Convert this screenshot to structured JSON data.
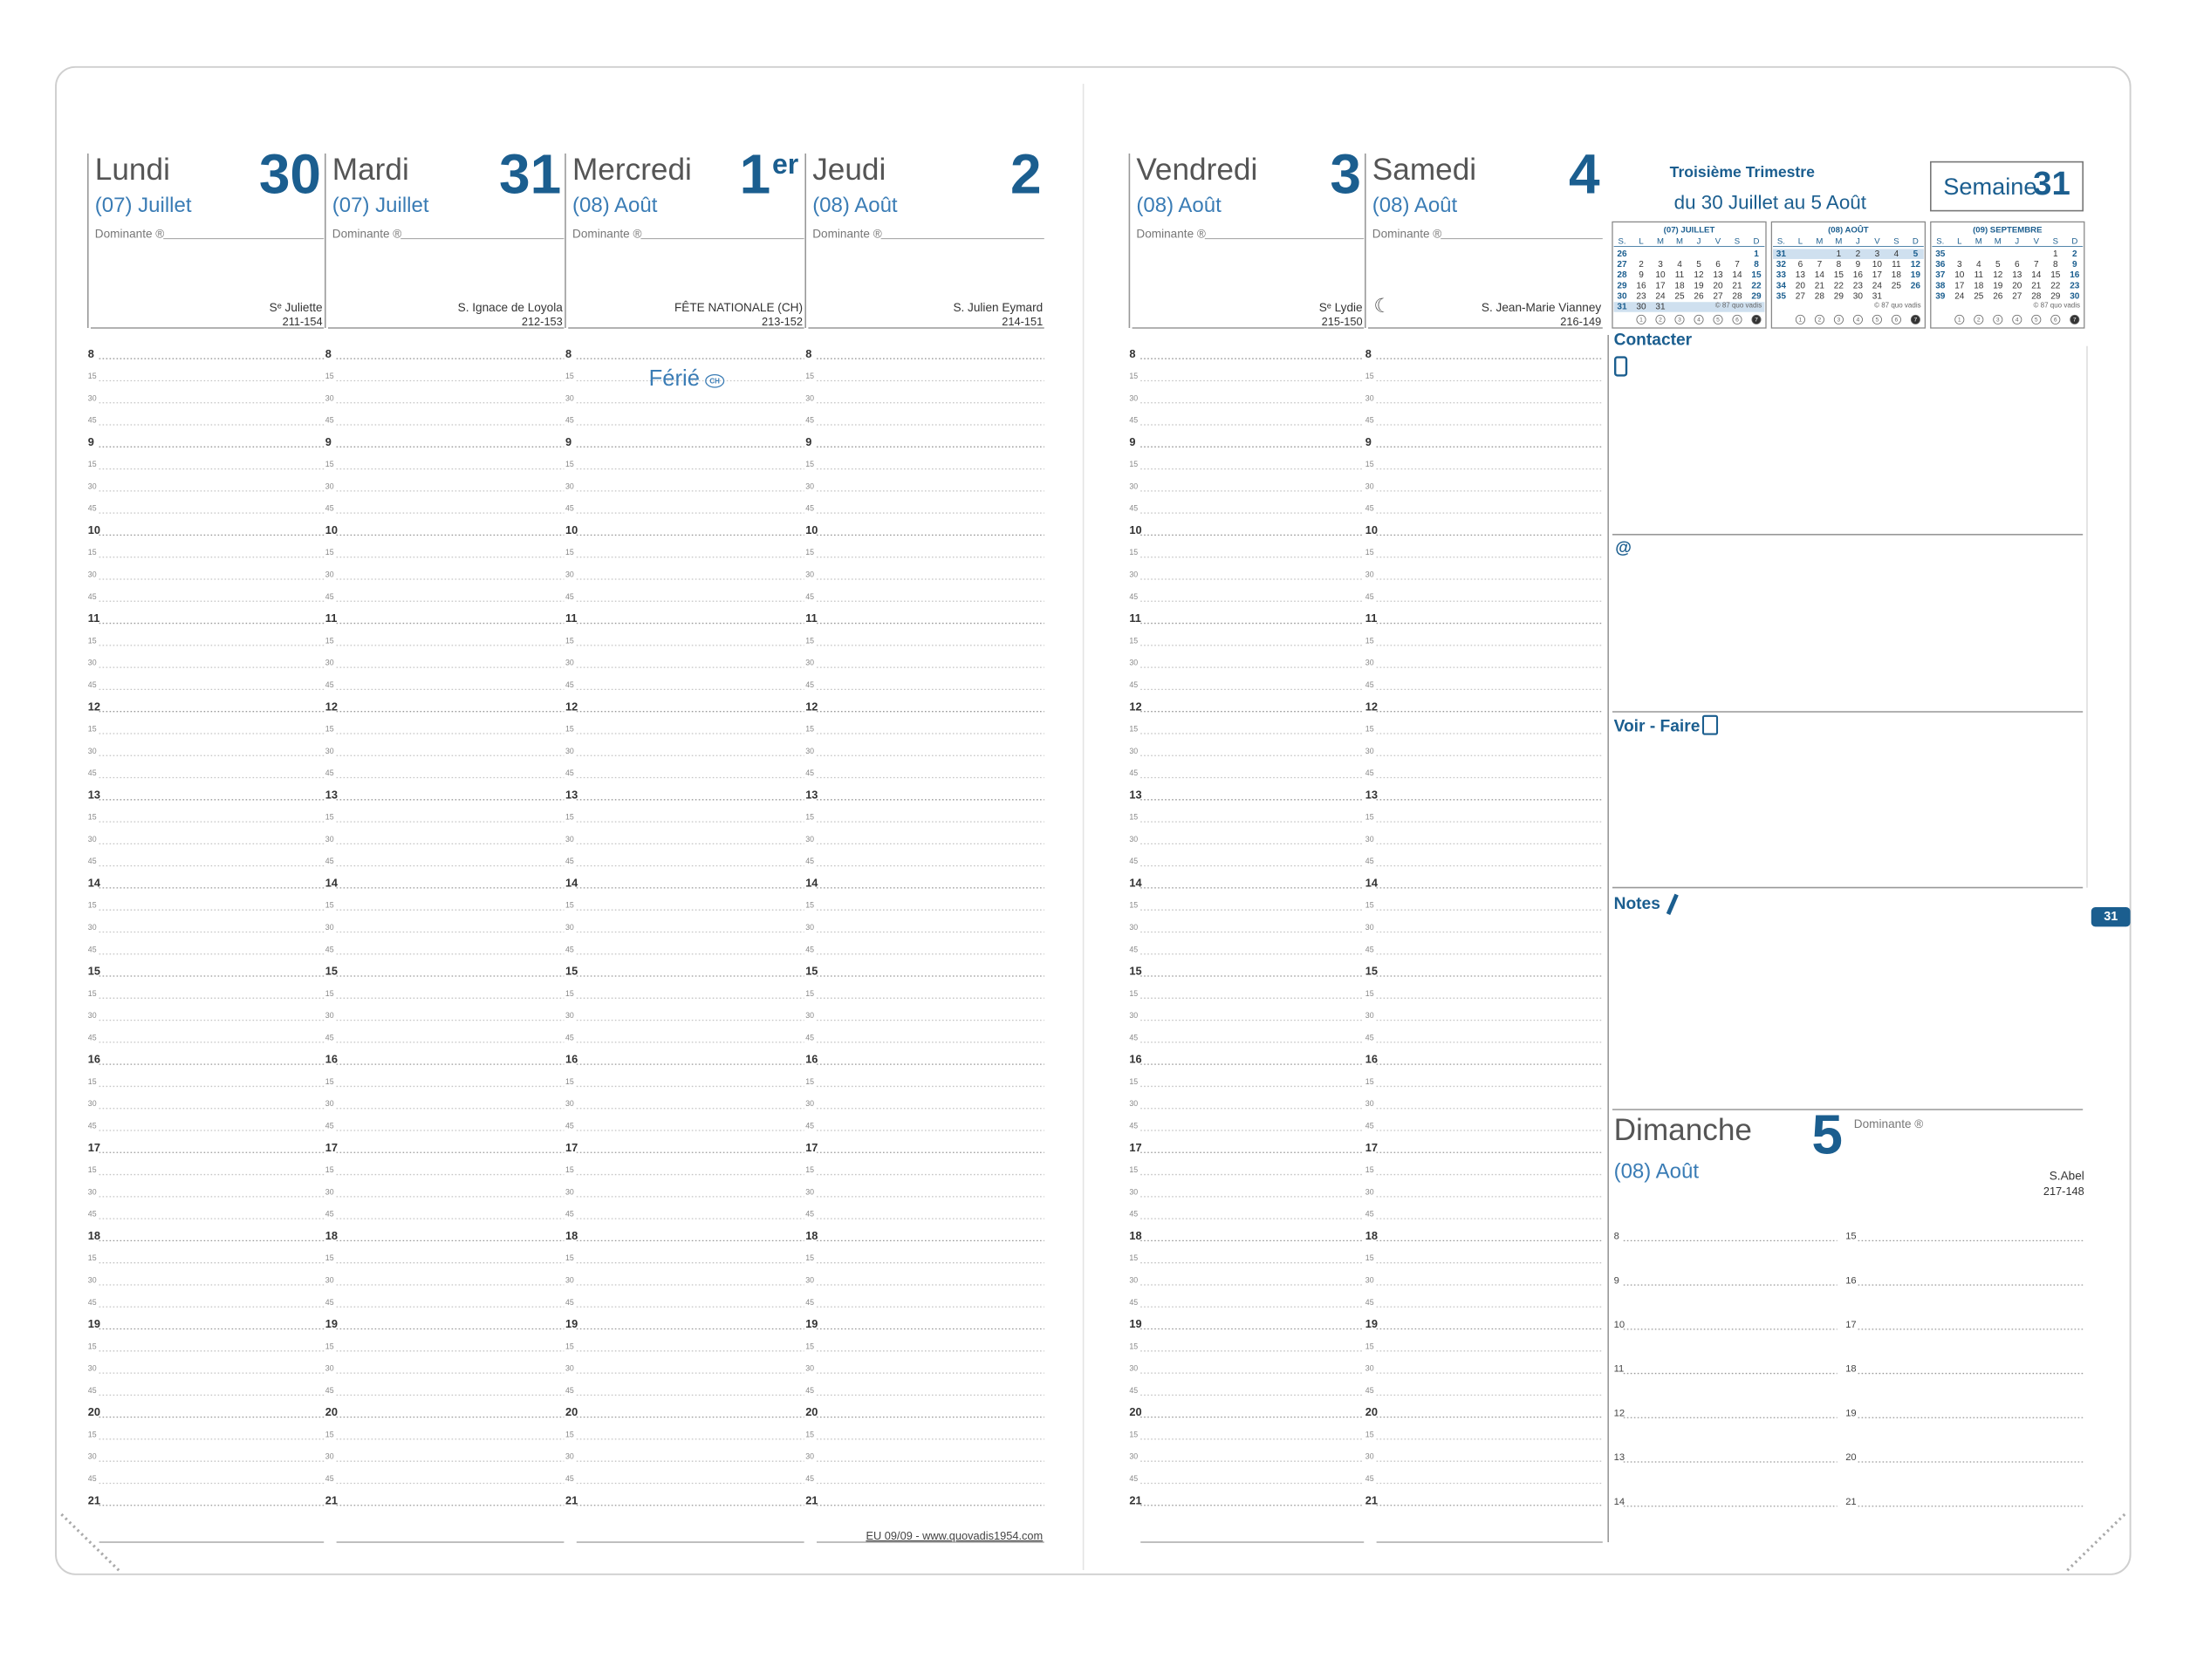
{
  "dominante_label": "Dominante ®",
  "hours": [
    "8",
    "9",
    "10",
    "11",
    "12",
    "13",
    "14",
    "15",
    "16",
    "17",
    "18",
    "19",
    "20",
    "21"
  ],
  "quarters": [
    "15",
    "30",
    "45"
  ],
  "left_page": {
    "days": [
      {
        "name": "Lundi",
        "number": "30",
        "month": "(07) Juillet",
        "saint": "Sᵉ Juliette",
        "day_of_year": "211-154"
      },
      {
        "name": "Mardi",
        "number": "31",
        "month": "(07) Juillet",
        "saint": "S. Ignace de Loyola",
        "day_of_year": "212-153"
      },
      {
        "name": "Mercredi",
        "number": "1",
        "sup": "er",
        "month": "(08) Août",
        "saint": "FÊTE NATIONALE (CH)",
        "day_of_year": "213-152"
      },
      {
        "name": "Jeudi",
        "number": "2",
        "month": "(08) Août",
        "saint": "S. Julien Eymard",
        "day_of_year": "214-151"
      }
    ],
    "holiday": {
      "label": "Férié",
      "badge": "CH"
    },
    "footer": "EU 09/09 - www.quovadis1954.com"
  },
  "right_page": {
    "days": [
      {
        "name": "Vendredi",
        "number": "3",
        "month": "(08) Août",
        "saint": "Sᵉ Lydie",
        "day_of_year": "215-150"
      },
      {
        "name": "Samedi",
        "number": "4",
        "month": "(08) Août",
        "moon": "☾",
        "saint": "S. Jean-Marie Vianney",
        "day_of_year": "216-149"
      }
    ],
    "quarter_title": "Troisième Trimestre",
    "date_range": "du 30 Juillet au 5 Août",
    "week_label": "Semaine",
    "week_number": "31",
    "weekday_headers": [
      "S.",
      "L",
      "M",
      "M",
      "J",
      "V",
      "S",
      "D"
    ],
    "weekday_numbers": [
      "1",
      "2",
      "3",
      "4",
      "5",
      "6",
      "7"
    ],
    "calendars": [
      {
        "title": "(07) JUILLET",
        "credit": "© 87 quo vadis",
        "rows": [
          {
            "week": 26,
            "days": [
              null,
              null,
              null,
              null,
              null,
              null,
              1
            ]
          },
          {
            "week": 27,
            "days": [
              2,
              3,
              4,
              5,
              6,
              7,
              8
            ]
          },
          {
            "week": 28,
            "days": [
              9,
              10,
              11,
              12,
              13,
              14,
              15
            ]
          },
          {
            "week": 29,
            "days": [
              16,
              17,
              18,
              19,
              20,
              21,
              22
            ]
          },
          {
            "week": 30,
            "days": [
              23,
              24,
              25,
              26,
              27,
              28,
              29
            ]
          },
          {
            "week": 31,
            "days": [
              30,
              31,
              null,
              null,
              null,
              null,
              null
            ]
          }
        ]
      },
      {
        "title": "(08) AOÛT",
        "credit": "© 87 quo vadis",
        "rows": [
          {
            "week": 31,
            "days": [
              null,
              null,
              1,
              2,
              3,
              4,
              5
            ]
          },
          {
            "week": 32,
            "days": [
              6,
              7,
              8,
              9,
              10,
              11,
              12
            ]
          },
          {
            "week": 33,
            "days": [
              13,
              14,
              15,
              16,
              17,
              18,
              19
            ]
          },
          {
            "week": 34,
            "days": [
              20,
              21,
              22,
              23,
              24,
              25,
              26
            ]
          },
          {
            "week": 35,
            "days": [
              27,
              28,
              29,
              30,
              31,
              null,
              null
            ]
          }
        ]
      },
      {
        "title": "(09) SEPTEMBRE",
        "credit": "© 87 quo vadis",
        "rows": [
          {
            "week": 35,
            "days": [
              null,
              null,
              null,
              null,
              null,
              1,
              2
            ]
          },
          {
            "week": 36,
            "days": [
              3,
              4,
              5,
              6,
              7,
              8,
              9
            ]
          },
          {
            "week": 37,
            "days": [
              10,
              11,
              12,
              13,
              14,
              15,
              16
            ]
          },
          {
            "week": 38,
            "days": [
              17,
              18,
              19,
              20,
              21,
              22,
              23
            ]
          },
          {
            "week": 39,
            "days": [
              24,
              25,
              26,
              27,
              28,
              29,
              30
            ]
          }
        ]
      }
    ],
    "sections": {
      "contact": "Contacter",
      "email": "@",
      "todo": "Voir - Faire",
      "notes": "Notes"
    },
    "sunday": {
      "name": "Dimanche",
      "number": "5",
      "month": "(08) Août",
      "saint": "S.Abel",
      "day_of_year": "217-148"
    },
    "tab": "31"
  }
}
